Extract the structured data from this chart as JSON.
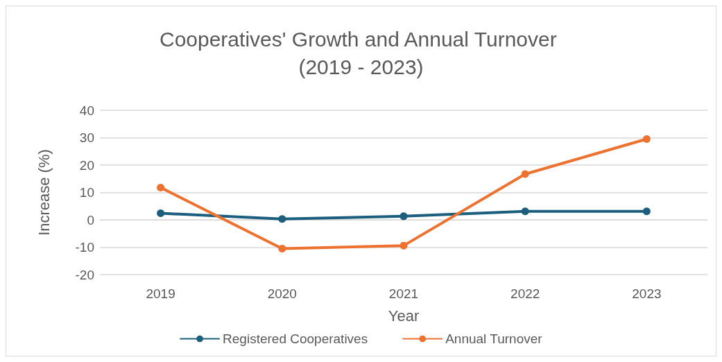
{
  "chart_data": {
    "type": "line",
    "title": "Cooperatives' Growth and Annual Turnover (2019 - 2023)",
    "xlabel": "Year",
    "ylabel": "Increase (%)",
    "categories": [
      "2019",
      "2020",
      "2021",
      "2022",
      "2023"
    ],
    "series": [
      {
        "name": "Registered Cooperatives",
        "color": "#1b5e7e",
        "values": [
          2.4,
          0.3,
          1.3,
          3.1,
          3.1
        ]
      },
      {
        "name": "Annual Turnover",
        "color": "#ed7230",
        "values": [
          11.8,
          -10.5,
          -9.4,
          16.7,
          29.5
        ]
      }
    ],
    "ylim": [
      -20,
      40
    ],
    "yticks": [
      -20,
      -10,
      0,
      10,
      20,
      30,
      40
    ],
    "grid": "y",
    "legend": "bottom",
    "marker": "circle",
    "line_style": "solid"
  }
}
